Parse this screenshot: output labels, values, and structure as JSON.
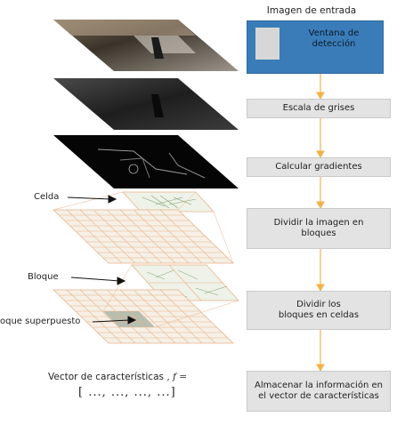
{
  "flow": {
    "title": "Imagen de entrada",
    "window_label": "Ventana de detección",
    "steps": [
      {
        "l1": "Escala de grises",
        "l2": ""
      },
      {
        "l1": "Calcular gradientes",
        "l2": ""
      },
      {
        "l1": "Dividir la imagen en",
        "l2": "bloques"
      },
      {
        "l1": "Dividir los",
        "l2": "bloques en celdas"
      },
      {
        "l1": "Almacenar la información en",
        "l2": "el vector de características"
      }
    ]
  },
  "labels": {
    "celda": "Celda",
    "bloque": "Bloque",
    "superpuesto": "oque superpuesto"
  },
  "vector": {
    "text": "Vector de características",
    "f": ", f =",
    "bracket": "[ ..., ..., ...,          ...]"
  },
  "colors": {
    "input_blue": "#3a7cb8",
    "step_gray": "#e3e3e3",
    "arrow_orange": "#f2b24a",
    "grid_line": "#e8b48a",
    "cell_fill": "#e9f0e0"
  }
}
